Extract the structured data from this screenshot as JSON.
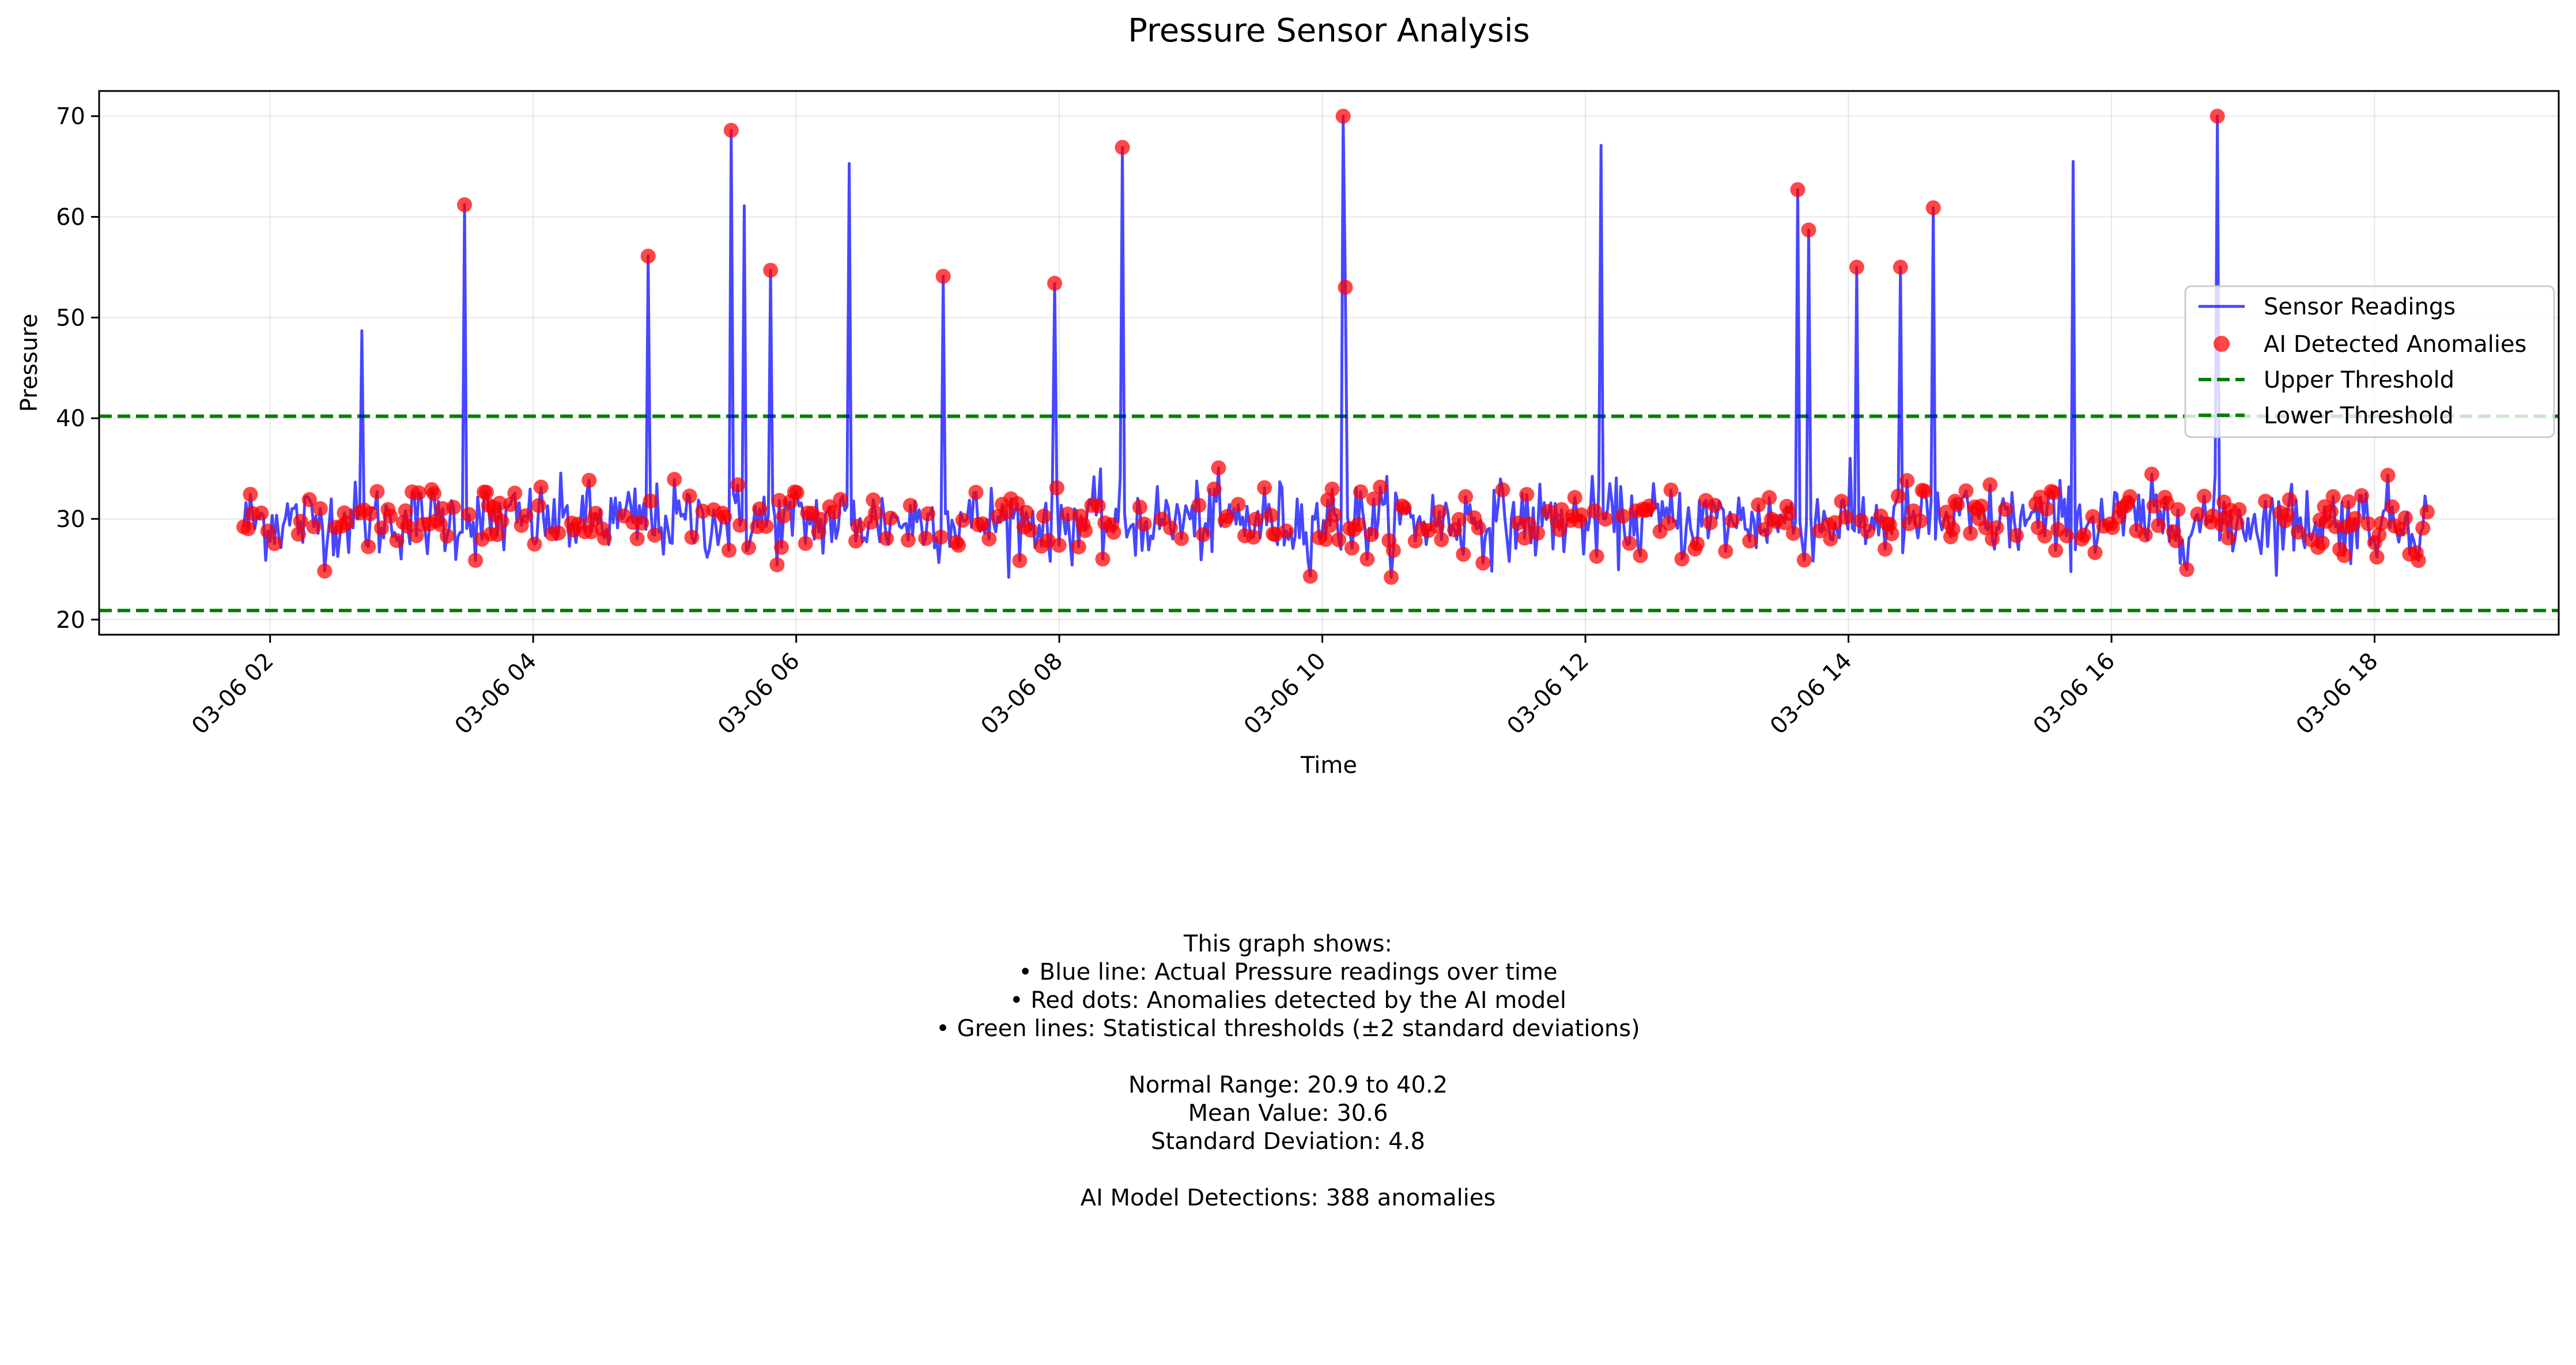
{
  "chart_data": {
    "type": "line",
    "title": "Pressure Sensor Analysis",
    "xlabel": "Time",
    "ylabel": "Pressure",
    "xlim_hours": [
      0.7,
      19.4
    ],
    "ylim": [
      18.5,
      72.5
    ],
    "x_tick_values_hours": [
      2,
      4,
      6,
      8,
      10,
      12,
      14,
      16,
      18
    ],
    "x_tick_labels": [
      "03-06 02",
      "03-06 04",
      "03-06 06",
      "03-06 08",
      "03-06 10",
      "03-06 12",
      "03-06 14",
      "03-06 16",
      "03-06 18"
    ],
    "y_ticks": [
      20,
      30,
      40,
      50,
      60,
      70
    ],
    "grid": true,
    "legend_position": "right",
    "legend": [
      "Sensor Readings",
      "AI Detected Anomalies",
      "Upper Threshold",
      "Lower Threshold"
    ],
    "series_style": {
      "readings_color": "#0000ff",
      "anomaly_color": "#ff0000",
      "threshold_color": "#008000"
    },
    "series": [
      {
        "name": "Sensor Readings",
        "t_start_hours": 1.8,
        "t_end_hours": 18.4,
        "num_points": 1000,
        "baseline_mean": 30.6,
        "baseline_std": 1.9,
        "spikes": [
          {
            "t": 2.7,
            "value": 48.7
          },
          {
            "t": 3.48,
            "value": 61.2
          },
          {
            "t": 4.87,
            "value": 56.1
          },
          {
            "t": 5.5,
            "value": 68.6
          },
          {
            "t": 5.6,
            "value": 61.1
          },
          {
            "t": 5.8,
            "value": 54.7
          },
          {
            "t": 6.4,
            "value": 65.3
          },
          {
            "t": 7.12,
            "value": 54.1
          },
          {
            "t": 7.97,
            "value": 53.4
          },
          {
            "t": 8.48,
            "value": 66.9
          },
          {
            "t": 10.15,
            "value": 70.0
          },
          {
            "t": 10.18,
            "value": 53.0
          },
          {
            "t": 12.12,
            "value": 67.1
          },
          {
            "t": 13.62,
            "value": 62.7
          },
          {
            "t": 13.7,
            "value": 58.7
          },
          {
            "t": 14.06,
            "value": 55.0
          },
          {
            "t": 14.4,
            "value": 55.0
          },
          {
            "t": 14.65,
            "value": 60.9
          },
          {
            "t": 15.7,
            "value": 65.5
          },
          {
            "t": 16.8,
            "value": 70.0
          }
        ]
      },
      {
        "name": "AI Detected Anomalies",
        "count": 388,
        "spike_points": [
          {
            "t": 3.48,
            "value": 61.2
          },
          {
            "t": 4.87,
            "value": 56.1
          },
          {
            "t": 5.5,
            "value": 68.6
          },
          {
            "t": 5.8,
            "value": 54.7
          },
          {
            "t": 7.97,
            "value": 53.4
          },
          {
            "t": 8.48,
            "value": 66.9
          },
          {
            "t": 10.15,
            "value": 70.0
          },
          {
            "t": 10.18,
            "value": 53.0
          },
          {
            "t": 13.62,
            "value": 62.7
          },
          {
            "t": 13.7,
            "value": 58.7
          },
          {
            "t": 14.06,
            "value": 55.0
          },
          {
            "t": 14.4,
            "value": 55.0
          },
          {
            "t": 14.65,
            "value": 60.9
          },
          {
            "t": 16.8,
            "value": 70.0
          }
        ]
      },
      {
        "name": "Upper Threshold",
        "value": 40.2
      },
      {
        "name": "Lower Threshold",
        "value": 20.9
      }
    ],
    "annotation": {
      "lines": [
        "This graph shows:",
        "• Blue line: Actual Pressure readings over time",
        "• Red dots: Anomalies detected by the AI model",
        "• Green lines: Statistical thresholds (±2 standard deviations)",
        "",
        "Normal Range: 20.9 to 40.2",
        "Mean Value: 30.6",
        "Standard Deviation: 4.8",
        "",
        "AI Model Detections: 388 anomalies"
      ]
    }
  }
}
